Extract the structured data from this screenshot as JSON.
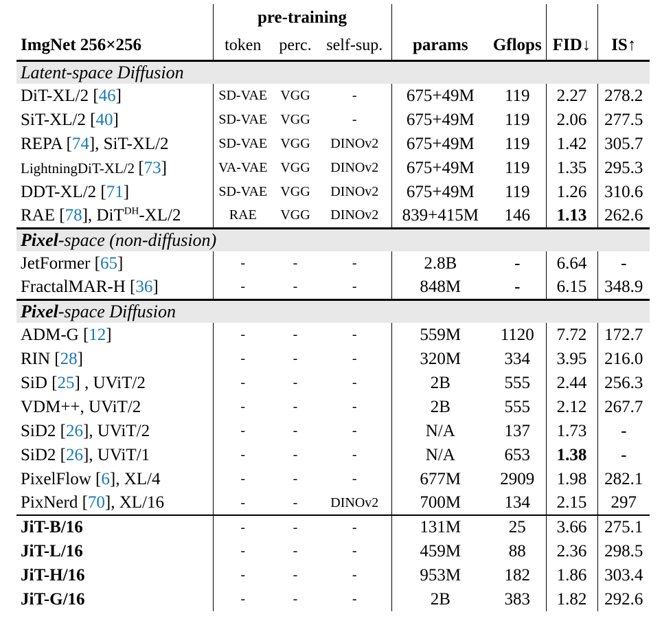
{
  "colors": {
    "cite_blue": "#1878b6",
    "section_bg": "#e8e8e8",
    "rule_black": "#000000"
  },
  "header": {
    "dataset_label": "ImgNet 256×256",
    "pretraining_group_label": "pre-training",
    "sub_token": "token",
    "sub_perc": "perc.",
    "sub_selfsup": "self-sup.",
    "col_params": "params",
    "col_gflops": "Gflops",
    "col_fid": "FID↓",
    "col_is": "IS↑"
  },
  "table": {
    "sections": [
      {
        "label_parts": [
          {
            "t": "Latent-space Diffusion"
          }
        ],
        "rows": [
          {
            "name": [
              {
                "t": "DiT-XL/2 ["
              },
              {
                "t": "46",
                "cite": true
              },
              {
                "t": "]"
              }
            ],
            "token": "SD-VAE",
            "perc": "VGG",
            "selfsup": "-",
            "params": "675+49M",
            "gflops": "119",
            "fid": "2.27",
            "fid_bold": false,
            "is": "278.2"
          },
          {
            "name": [
              {
                "t": "SiT-XL/2 ["
              },
              {
                "t": "40",
                "cite": true
              },
              {
                "t": "]"
              }
            ],
            "token": "SD-VAE",
            "perc": "VGG",
            "selfsup": "-",
            "params": "675+49M",
            "gflops": "119",
            "fid": "2.06",
            "fid_bold": false,
            "is": "277.5"
          },
          {
            "name": [
              {
                "t": "REPA ["
              },
              {
                "t": "74",
                "cite": true
              },
              {
                "t": "], SiT-XL/2"
              }
            ],
            "token": "SD-VAE",
            "perc": "VGG",
            "selfsup": "DINOv2",
            "params": "675+49M",
            "gflops": "119",
            "fid": "1.42",
            "fid_bold": false,
            "is": "305.7"
          },
          {
            "name": [
              {
                "t": "LightningDiT-XL/2 ",
                "small": true
              },
              {
                "t": "["
              },
              {
                "t": "73",
                "cite": true
              },
              {
                "t": "]"
              }
            ],
            "token": "VA-VAE",
            "perc": "VGG",
            "selfsup": "DINOv2",
            "params": "675+49M",
            "gflops": "119",
            "fid": "1.35",
            "fid_bold": false,
            "is": "295.3"
          },
          {
            "name": [
              {
                "t": "DDT-XL/2 ["
              },
              {
                "t": "71",
                "cite": true
              },
              {
                "t": "]"
              }
            ],
            "token": "SD-VAE",
            "perc": "VGG",
            "selfsup": "DINOv2",
            "params": "675+49M",
            "gflops": "119",
            "fid": "1.26",
            "fid_bold": false,
            "is": "310.6"
          },
          {
            "name": [
              {
                "t": "RAE ["
              },
              {
                "t": "78",
                "cite": true
              },
              {
                "t": "], DiT"
              },
              {
                "t": "DH",
                "sup": true
              },
              {
                "t": "-XL/2"
              }
            ],
            "token": "RAE",
            "perc": "VGG",
            "selfsup": "DINOv2",
            "params": "839+415M",
            "gflops": "146",
            "fid": "1.13",
            "fid_bold": true,
            "is": "262.6"
          }
        ]
      },
      {
        "label_parts": [
          {
            "t": "Pixel",
            "bold": true
          },
          {
            "t": "-space (non-diffusion)"
          }
        ],
        "rows": [
          {
            "name": [
              {
                "t": "JetFormer ["
              },
              {
                "t": "65",
                "cite": true
              },
              {
                "t": "]"
              }
            ],
            "token": "-",
            "perc": "-",
            "selfsup": "-",
            "params": "2.8B",
            "gflops": "-",
            "fid": "6.64",
            "fid_bold": false,
            "is": "-"
          },
          {
            "name": [
              {
                "t": "FractalMAR-H ["
              },
              {
                "t": "36",
                "cite": true
              },
              {
                "t": "]"
              }
            ],
            "token": "-",
            "perc": "-",
            "selfsup": "-",
            "params": "848M",
            "gflops": "-",
            "fid": "6.15",
            "fid_bold": false,
            "is": "348.9"
          }
        ]
      },
      {
        "label_parts": [
          {
            "t": "Pixel",
            "bold": true
          },
          {
            "t": "-space Diffusion"
          }
        ],
        "rows": [
          {
            "name": [
              {
                "t": "ADM-G ["
              },
              {
                "t": "12",
                "cite": true
              },
              {
                "t": "]"
              }
            ],
            "token": "-",
            "perc": "-",
            "selfsup": "-",
            "params": "559M",
            "gflops": "1120",
            "fid": "7.72",
            "fid_bold": false,
            "is": "172.7"
          },
          {
            "name": [
              {
                "t": "RIN ["
              },
              {
                "t": "28",
                "cite": true
              },
              {
                "t": "]"
              }
            ],
            "token": "-",
            "perc": "-",
            "selfsup": "-",
            "params": "320M",
            "gflops": "334",
            "fid": "3.95",
            "fid_bold": false,
            "is": "216.0"
          },
          {
            "name": [
              {
                "t": "SiD ["
              },
              {
                "t": "25",
                "cite": true
              },
              {
                "t": "] , UViT/2"
              }
            ],
            "token": "-",
            "perc": "-",
            "selfsup": "-",
            "params": "2B",
            "gflops": "555",
            "fid": "2.44",
            "fid_bold": false,
            "is": "256.3"
          },
          {
            "name": [
              {
                "t": "VDM++, UViT/2"
              }
            ],
            "token": "-",
            "perc": "-",
            "selfsup": "-",
            "params": "2B",
            "gflops": "555",
            "fid": "2.12",
            "fid_bold": false,
            "is": "267.7"
          },
          {
            "name": [
              {
                "t": "SiD2 ["
              },
              {
                "t": "26",
                "cite": true
              },
              {
                "t": "], UViT/2"
              }
            ],
            "token": "-",
            "perc": "-",
            "selfsup": "-",
            "params": "N/A",
            "gflops": "137",
            "fid": "1.73",
            "fid_bold": false,
            "is": "-"
          },
          {
            "name": [
              {
                "t": "SiD2 ["
              },
              {
                "t": "26",
                "cite": true
              },
              {
                "t": "], UViT/1"
              }
            ],
            "token": "-",
            "perc": "-",
            "selfsup": "-",
            "params": "N/A",
            "gflops": "653",
            "fid": "1.38",
            "fid_bold": true,
            "is": "-"
          },
          {
            "name": [
              {
                "t": "PixelFlow ["
              },
              {
                "t": "6",
                "cite": true
              },
              {
                "t": "], XL/4"
              }
            ],
            "token": "-",
            "perc": "-",
            "selfsup": "-",
            "params": "677M",
            "gflops": "2909",
            "fid": "1.98",
            "fid_bold": false,
            "is": "282.1"
          },
          {
            "name": [
              {
                "t": "PixNerd ["
              },
              {
                "t": "70",
                "cite": true
              },
              {
                "t": "], XL/16"
              }
            ],
            "token": "-",
            "perc": "-",
            "selfsup": "DINOv2",
            "params": "700M",
            "gflops": "134",
            "fid": "2.15",
            "fid_bold": false,
            "is": "297"
          },
          {
            "name": [
              {
                "t": "JiT-B/16"
              }
            ],
            "bold": true,
            "rule_before": true,
            "token": "-",
            "perc": "-",
            "selfsup": "-",
            "params": "131M",
            "gflops": "25",
            "fid": "3.66",
            "fid_bold": false,
            "is": "275.1"
          },
          {
            "name": [
              {
                "t": "JiT-L/16"
              }
            ],
            "bold": true,
            "token": "-",
            "perc": "-",
            "selfsup": "-",
            "params": "459M",
            "gflops": "88",
            "fid": "2.36",
            "fid_bold": false,
            "is": "298.5"
          },
          {
            "name": [
              {
                "t": "JiT-H/16"
              }
            ],
            "bold": true,
            "token": "-",
            "perc": "-",
            "selfsup": "-",
            "params": "953M",
            "gflops": "182",
            "fid": "1.86",
            "fid_bold": false,
            "is": "303.4"
          },
          {
            "name": [
              {
                "t": "JiT-G/16"
              }
            ],
            "bold": true,
            "token": "-",
            "perc": "-",
            "selfsup": "-",
            "params": "2B",
            "gflops": "383",
            "fid": "1.82",
            "fid_bold": false,
            "is": "292.6"
          }
        ]
      }
    ]
  }
}
